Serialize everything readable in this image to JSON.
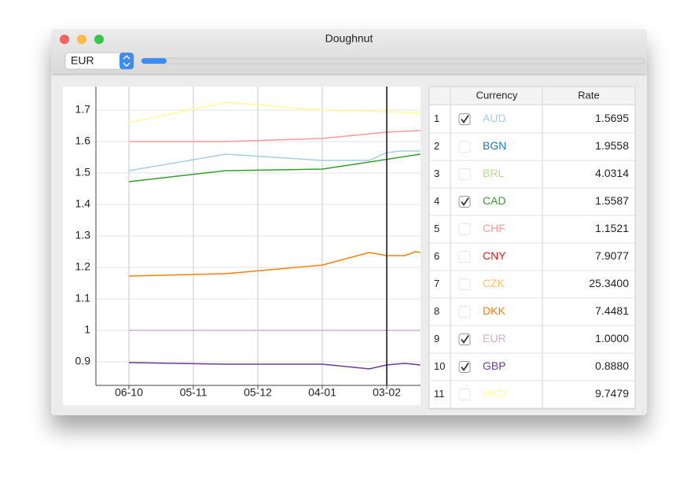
{
  "window": {
    "title": "Doughnut"
  },
  "toolbar": {
    "combo": "EUR",
    "progress": 0.05
  },
  "chart_data": {
    "type": "line",
    "xlim": [
      -0.512,
      4.524
    ],
    "ylim": [
      0.825,
      1.775
    ],
    "xticks": [
      {
        "value": 0,
        "label": "06-10"
      },
      {
        "value": 1,
        "label": "05-11"
      },
      {
        "value": 2,
        "label": "05-12"
      },
      {
        "value": 3,
        "label": "04-01"
      },
      {
        "value": 4,
        "label": "03-02"
      }
    ],
    "yticks": [
      0.9,
      1,
      1.1,
      1.2,
      1.3,
      1.4,
      1.5,
      1.6,
      1.7
    ],
    "grid": true,
    "cursor": 4,
    "series": [
      {
        "color": "#ffff99",
        "x": [
          0,
          1.5,
          3,
          4,
          4.52
        ],
        "values": [
          1.66,
          1.725,
          1.7,
          1.695,
          1.69
        ]
      },
      {
        "color": "#fb9a99",
        "x": [
          0,
          1.5,
          3,
          4,
          4.52
        ],
        "values": [
          1.6,
          1.6,
          1.61,
          1.63,
          1.635
        ]
      },
      {
        "color": "#a6cee3",
        "x": [
          0,
          1.5,
          3,
          3.73,
          4,
          4.22,
          4.52
        ],
        "values": [
          1.5075,
          1.56,
          1.54,
          1.54,
          1.565,
          1.57,
          1.57
        ]
      },
      {
        "color": "#33a02c",
        "x": [
          0,
          1.5,
          3,
          3.73,
          4.52
        ],
        "values": [
          1.4725,
          1.5075,
          1.5125,
          1.535,
          1.56
        ]
      },
      {
        "color": "#ff7f00",
        "x": [
          0,
          1.5,
          3,
          3.73,
          4,
          4.28,
          4.44,
          4.52
        ],
        "values": [
          1.1725,
          1.18,
          1.2075,
          1.2475,
          1.2375,
          1.2375,
          1.25,
          1.2475
        ]
      },
      {
        "color": "#cab2d6",
        "x": [
          0,
          4.52
        ],
        "values": [
          1.0,
          1.0
        ]
      },
      {
        "color": "#6a3d9a",
        "x": [
          0,
          1.5,
          3,
          3.73,
          4,
          4.28,
          4.52
        ],
        "values": [
          0.8975,
          0.8925,
          0.8925,
          0.8775,
          0.89,
          0.895,
          0.89
        ]
      }
    ]
  },
  "table": {
    "header": [
      "Currency",
      "Rate"
    ],
    "rows": [
      {
        "index": 1,
        "checked": true,
        "currency": "AUD",
        "color": "#a6cee3",
        "rate": "1.5695"
      },
      {
        "index": 2,
        "checked": false,
        "currency": "BGN",
        "color": "#1f78b4",
        "rate": "1.9558"
      },
      {
        "index": 3,
        "checked": false,
        "currency": "BRL",
        "color": "#b2df8a",
        "rate": "4.0314"
      },
      {
        "index": 4,
        "checked": true,
        "currency": "CAD",
        "color": "#33a02c",
        "rate": "1.5587"
      },
      {
        "index": 5,
        "checked": false,
        "currency": "CHF",
        "color": "#fb9a99",
        "rate": "1.1521"
      },
      {
        "index": 6,
        "checked": false,
        "currency": "CNY",
        "color": "#e31a1c",
        "rate": "7.9077"
      },
      {
        "index": 7,
        "checked": false,
        "currency": "CZK",
        "color": "#fdbf6f",
        "rate": "25.3400"
      },
      {
        "index": 8,
        "checked": false,
        "currency": "DKK",
        "color": "#ff7f00",
        "rate": "7.4481"
      },
      {
        "index": 9,
        "checked": true,
        "currency": "EUR",
        "color": "#cab2d6",
        "rate": "1.0000"
      },
      {
        "index": 10,
        "checked": true,
        "currency": "GBP",
        "color": "#6a3d9a",
        "rate": "0.8880"
      },
      {
        "index": 11,
        "checked": false,
        "currency": "HKD",
        "color": "#ffff99",
        "rate": "9.7479"
      }
    ]
  }
}
